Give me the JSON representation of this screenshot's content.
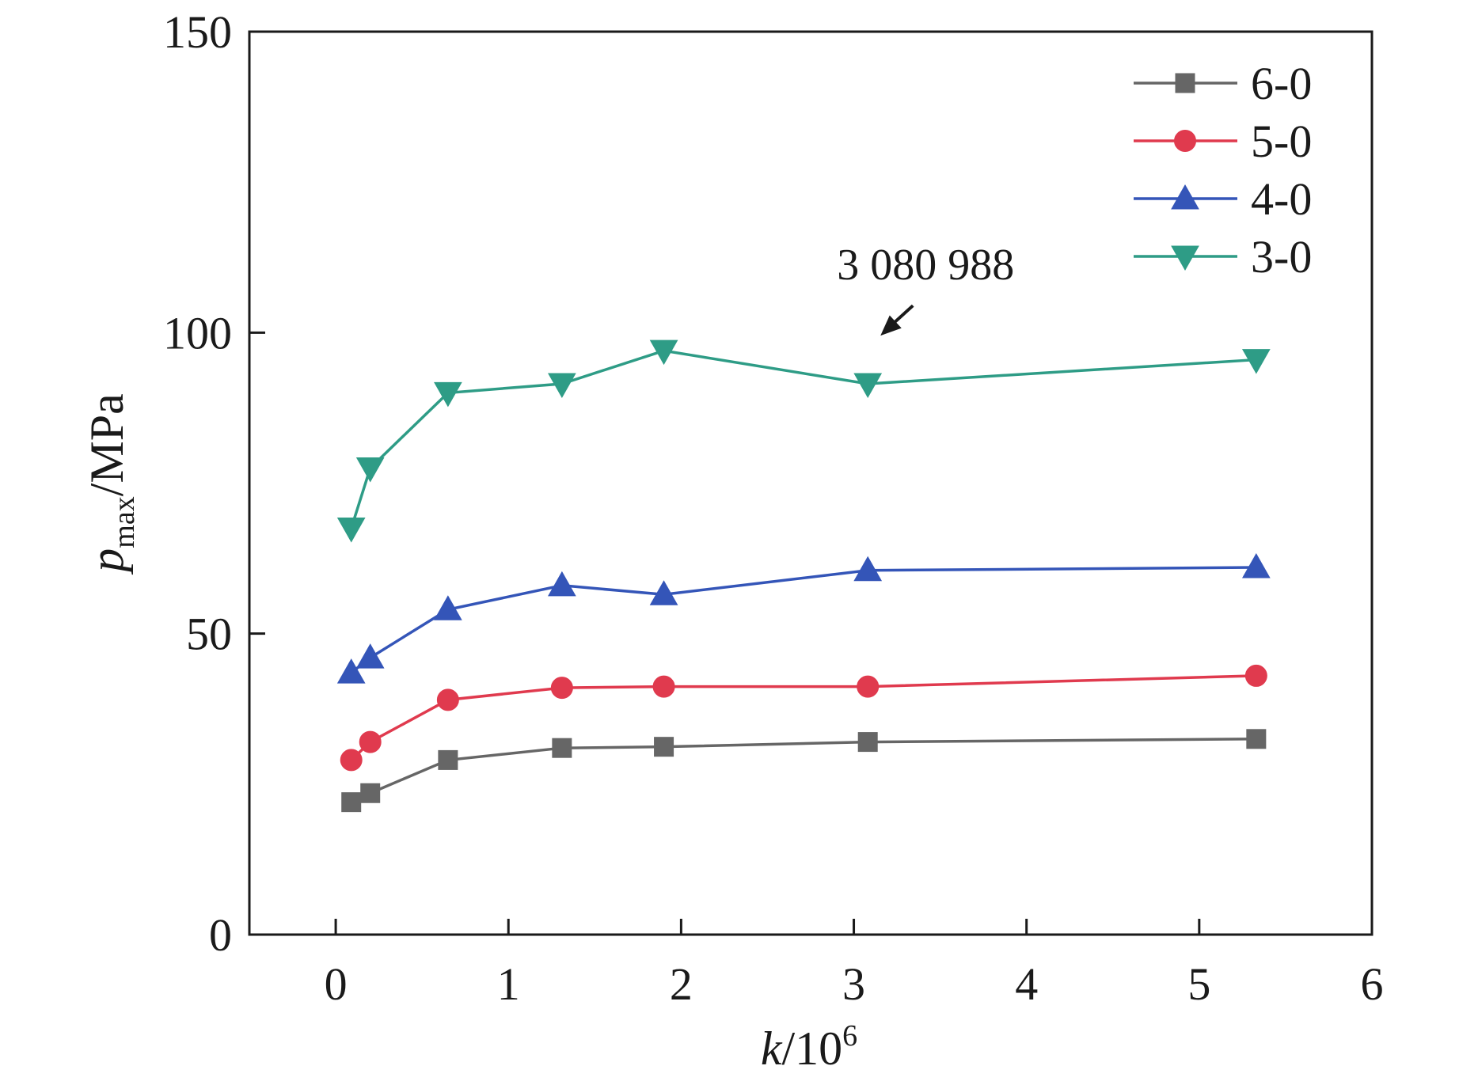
{
  "chart_data": {
    "type": "line",
    "xlabel_main": "k",
    "xlabel_sep": "/10",
    "xlabel_sup": "6",
    "ylabel_main": "p",
    "ylabel_sub": "max",
    "ylabel_unit": "/MPa",
    "xlim": [
      -0.5,
      6
    ],
    "ylim": [
      0,
      150
    ],
    "xticks": [
      "0",
      "1",
      "2",
      "3",
      "4",
      "5",
      "6"
    ],
    "xtick_values": [
      0,
      1,
      2,
      3,
      4,
      5,
      6
    ],
    "yticks": [
      "0",
      "50",
      "100",
      "150"
    ],
    "ytick_values": [
      0,
      50,
      100,
      150
    ],
    "grid": false,
    "legend_position": "top-right",
    "annotation": {
      "text": "3 080 988",
      "x": 3.081,
      "y": 92
    },
    "series": [
      {
        "name": "6-0",
        "color": "#666666",
        "marker": "square",
        "x": [
          0.09,
          0.2,
          0.65,
          1.31,
          1.9,
          3.081,
          5.33
        ],
        "y": [
          22,
          23.5,
          29,
          31,
          31.2,
          32,
          32.5
        ]
      },
      {
        "name": "5-0",
        "color": "#e03a4e",
        "marker": "circle",
        "x": [
          0.09,
          0.2,
          0.65,
          1.31,
          1.9,
          3.081,
          5.33
        ],
        "y": [
          29,
          32,
          39,
          41,
          41.2,
          41.2,
          43
        ]
      },
      {
        "name": "4-0",
        "color": "#3455b8",
        "marker": "triangle-up",
        "x": [
          0.09,
          0.2,
          0.65,
          1.31,
          1.9,
          3.081,
          5.33
        ],
        "y": [
          43.5,
          46,
          54,
          58,
          56.5,
          60.5,
          61
        ]
      },
      {
        "name": "3-0",
        "color": "#2e9c86",
        "marker": "triangle-down",
        "x": [
          0.09,
          0.2,
          0.65,
          1.31,
          1.9,
          3.081,
          5.33
        ],
        "y": [
          67.5,
          77.5,
          90,
          91.5,
          97,
          91.5,
          95.5
        ]
      }
    ]
  }
}
